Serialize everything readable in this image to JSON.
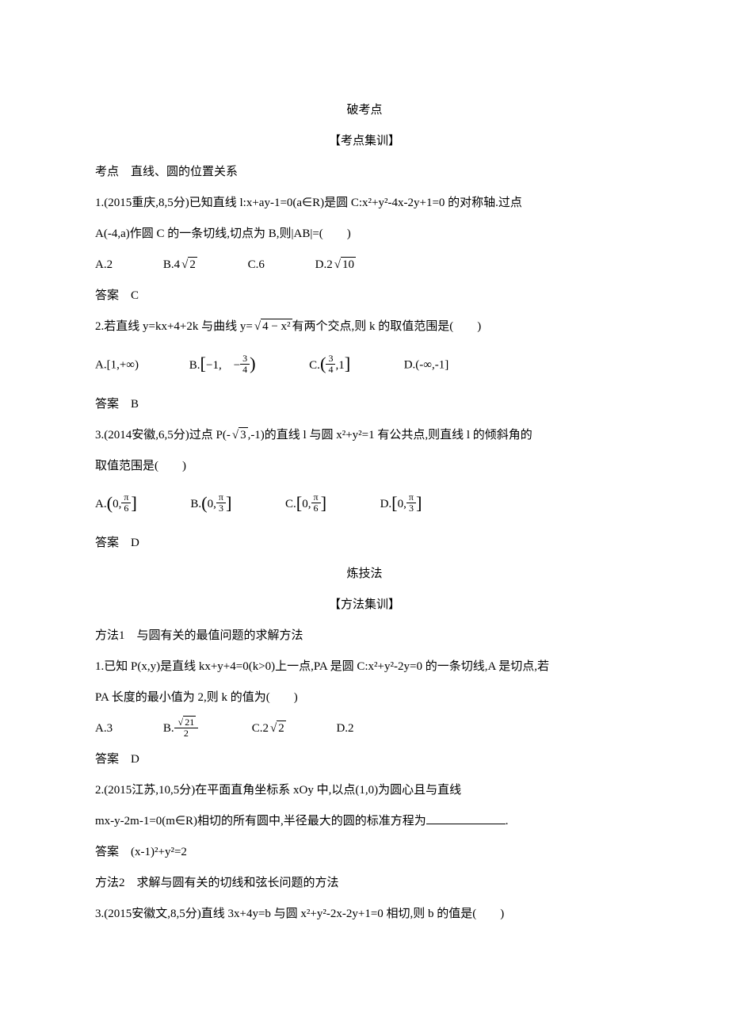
{
  "header1": "破考点",
  "header2": "【考点集训】",
  "topic1": "考点　直线、圆的位置关系",
  "q1_text_a": "1.(2015重庆,8,5分)已知直线 l:x+ay-1=0(a∈R)是圆 C:x²+y²-4x-2y+1=0 的对称轴.过点",
  "q1_text_b": "A(-4,a)作圆 C 的一条切线,切点为 B,则|AB|=(　　)",
  "q1_optA": "A.2",
  "q1_optB_prefix": "B.4",
  "q1_optB_rad": "2",
  "q1_optC": "C.6",
  "q1_optD_prefix": "D.2",
  "q1_optD_rad": "10",
  "q1_ans": "答案　C",
  "q2_text_a": "2.若直线 y=kx+4+2k 与曲线 y=",
  "q2_rad": "4 − x²",
  "q2_text_b": "有两个交点,则 k 的取值范围是(　　)",
  "q2_optA": "A.[1,+∞)",
  "q2_optB_pre": "B.",
  "q2_optB_body": "−1,　−",
  "q2_optB_num": "3",
  "q2_optB_den": "4",
  "q2_optC_pre": "C.",
  "q2_optC_num": "3",
  "q2_optC_den": "4",
  "q2_optC_tail": ",1",
  "q2_optD": "D.(-∞,-1]",
  "q2_ans": "答案　B",
  "q3_text_a": "3.(2014安徽,6,5分)过点 P(-",
  "q3_rad": "3",
  "q3_text_b": ",-1)的直线 l 与圆 x²+y²=1 有公共点,则直线 l 的倾斜角的",
  "q3_text_c": "取值范围是(　　)",
  "q3_optA_pre": "A.",
  "q3_optA_body": "0,",
  "q3_A_num": "π",
  "q3_A_den": "6",
  "q3_optB_pre": "B.",
  "q3_B_num": "π",
  "q3_B_den": "3",
  "q3_optC_pre": "C.",
  "q3_C_num": "π",
  "q3_C_den": "6",
  "q3_optD_pre": "D.",
  "q3_D_num": "π",
  "q3_D_den": "3",
  "q3_ans": "答案　D",
  "header3": "炼技法",
  "header4": "【方法集训】",
  "method1": "方法1　与圆有关的最值问题的求解方法",
  "m1q1_a": "1.已知 P(x,y)是直线 kx+y+4=0(k>0)上一点,PA 是圆 C:x²+y²-2y=0 的一条切线,A 是切点,若",
  "m1q1_b": "PA 长度的最小值为 2,则 k 的值为(　　)",
  "m1_optA": "A.3",
  "m1_optB_pre": "B.",
  "m1_B_num_rad": "21",
  "m1_B_den": "2",
  "m1_optC_pre": "C.2",
  "m1_C_rad": "2",
  "m1_optD": "D.2",
  "m1_ans": "答案　D",
  "m1q2_a": "2.(2015江苏,10,5分)在平面直角坐标系 xOy 中,以点(1,0)为圆心且与直线",
  "m1q2_b_pre": "mx-y-2m-1=0(m∈R)相切的所有圆中,半径最大的圆的标准方程为",
  "m1q2_b_post": ".",
  "m1q2_ans": "答案　(x-1)²+y²=2",
  "method2": "方法2　求解与圆有关的切线和弦长问题的方法",
  "m2q3": "3.(2015安徽文,8,5分)直线 3x+4y=b 与圆 x²+y²-2x-2y+1=0 相切,则 b 的值是(　　)"
}
